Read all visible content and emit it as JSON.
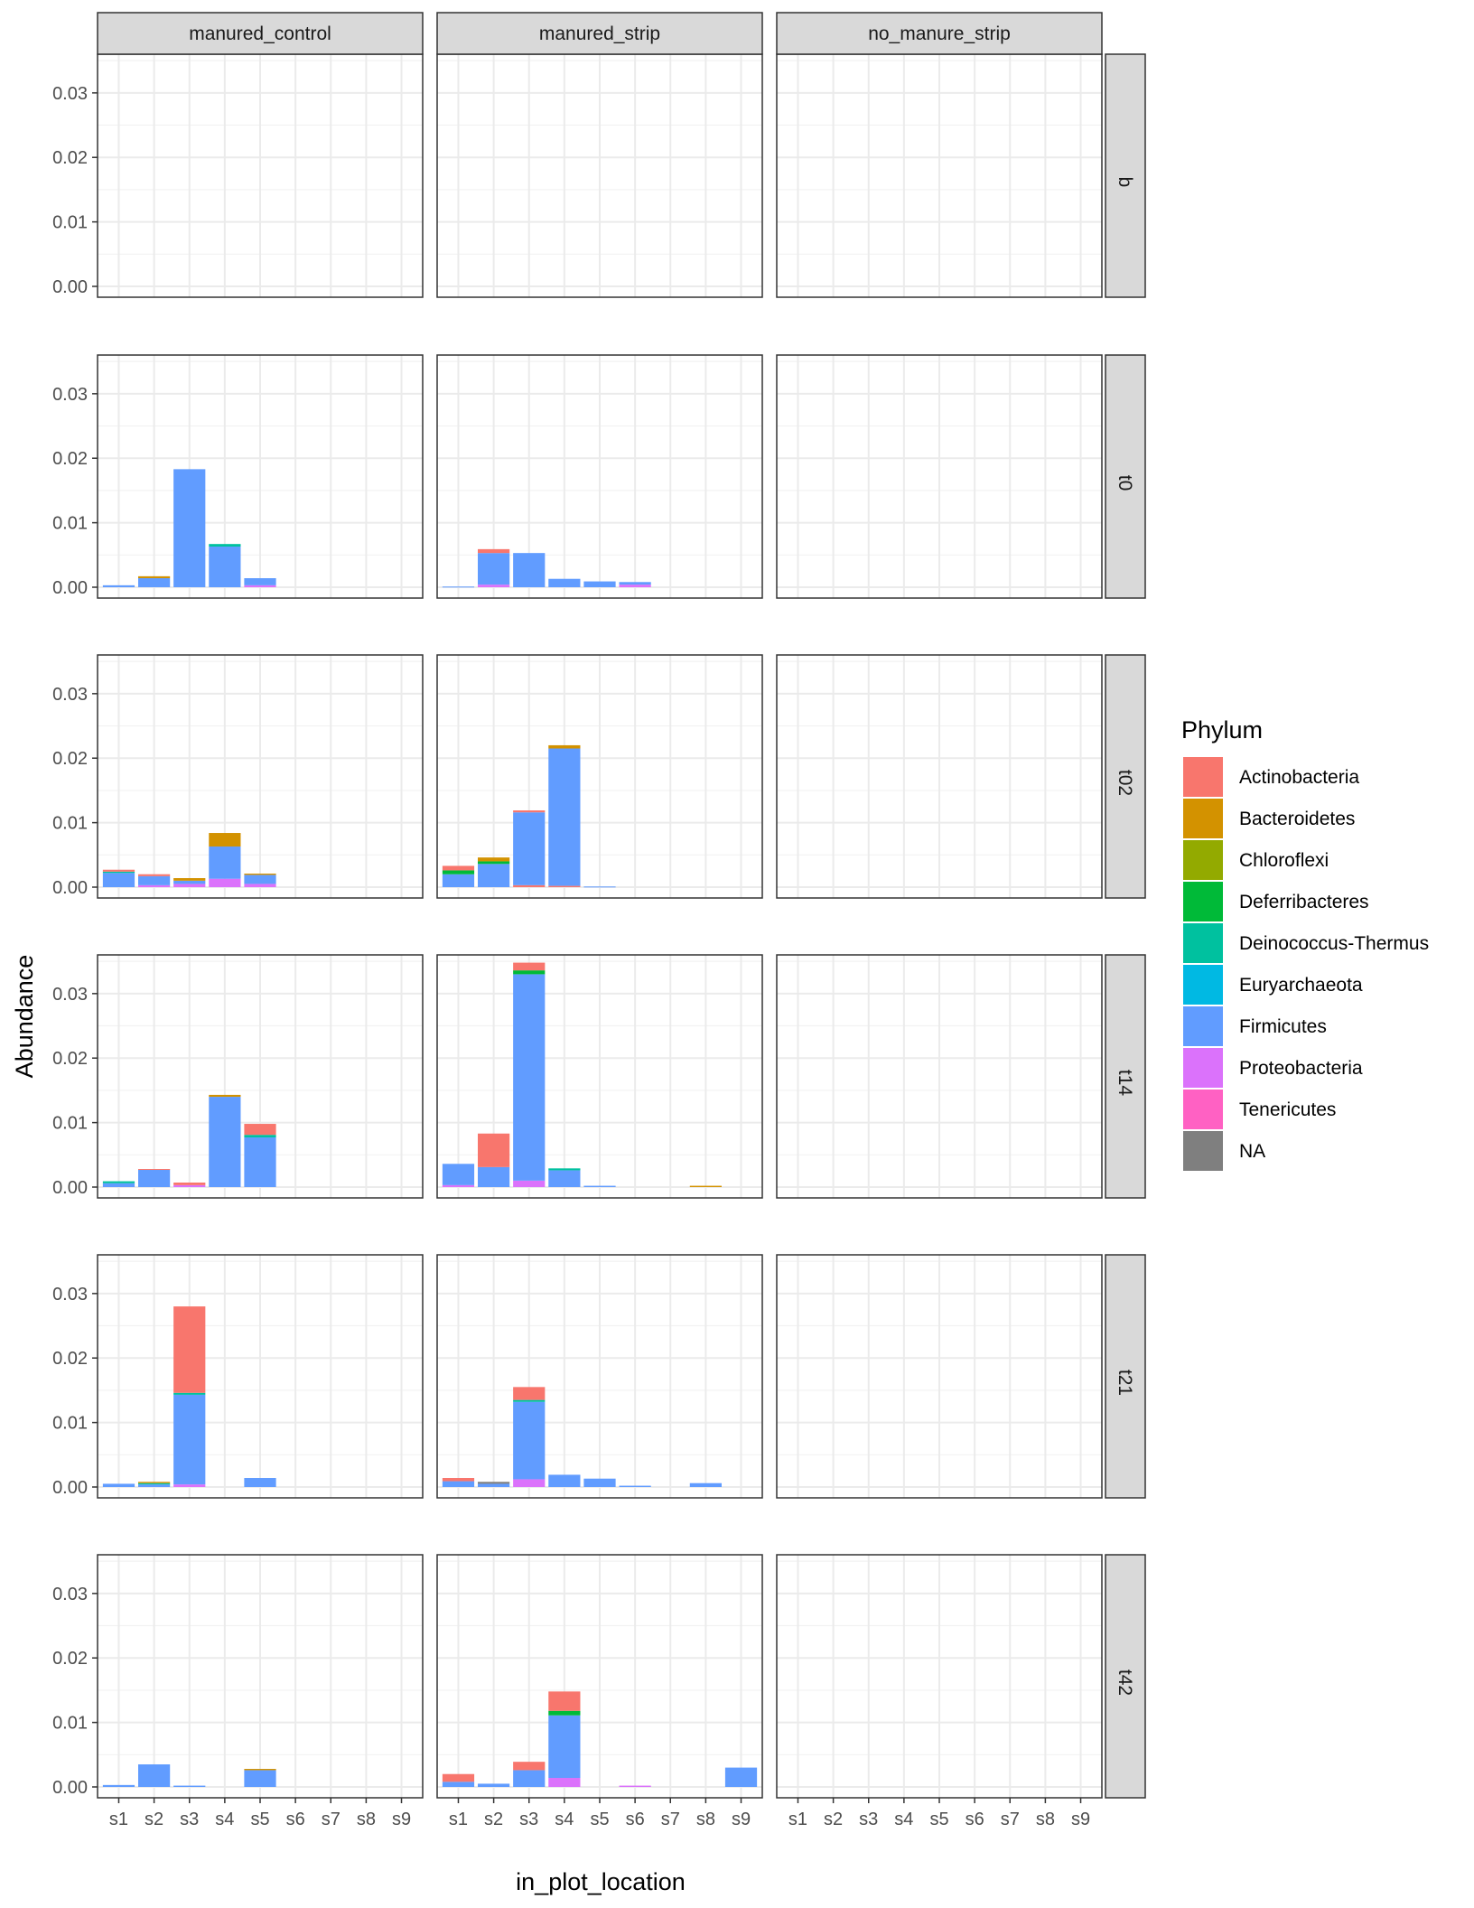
{
  "chart_data": {
    "type": "bar",
    "stacked": true,
    "facet_cols": [
      "manured_control",
      "manured_strip",
      "no_manure_strip"
    ],
    "facet_rows": [
      "b",
      "t0",
      "t02",
      "t14",
      "t21",
      "t42"
    ],
    "categories": [
      "s1",
      "s2",
      "s3",
      "s4",
      "s5",
      "s6",
      "s7",
      "s8",
      "s9"
    ],
    "xlabel": "in_plot_location",
    "ylabel": "Abundance",
    "ylim": [
      0,
      0.036
    ],
    "yticks": [
      0,
      0.01,
      0.02,
      0.03
    ],
    "ytick_labels": [
      "0.00",
      "0.01",
      "0.02",
      "0.03"
    ],
    "grid": true,
    "legend": {
      "title": "Phylum",
      "position": "right",
      "entries": [
        {
          "name": "Actinobacteria",
          "color": "#F8766D"
        },
        {
          "name": "Bacteroidetes",
          "color": "#D39200"
        },
        {
          "name": "Chloroflexi",
          "color": "#93AA00"
        },
        {
          "name": "Deferribacteres",
          "color": "#00BA38"
        },
        {
          "name": "Deinococcus-Thermus",
          "color": "#00C19F"
        },
        {
          "name": "Euryarchaeota",
          "color": "#00B9E3"
        },
        {
          "name": "Firmicutes",
          "color": "#619CFF"
        },
        {
          "name": "Proteobacteria",
          "color": "#DB72FB"
        },
        {
          "name": "Tenericutes",
          "color": "#FF61C3"
        },
        {
          "name": "NA",
          "color": "#7F7F7F"
        }
      ]
    },
    "panels": [
      {
        "col": "manured_control",
        "row": "t0",
        "bars": [
          {
            "x": "s1",
            "segments": [
              {
                "phylum": "Firmicutes",
                "value": 0.0003
              }
            ]
          },
          {
            "x": "s2",
            "segments": [
              {
                "phylum": "Firmicutes",
                "value": 0.0014
              },
              {
                "phylum": "Bacteroidetes",
                "value": 0.0003
              }
            ]
          },
          {
            "x": "s3",
            "segments": [
              {
                "phylum": "Firmicutes",
                "value": 0.0183
              }
            ]
          },
          {
            "x": "s4",
            "segments": [
              {
                "phylum": "Firmicutes",
                "value": 0.0063
              },
              {
                "phylum": "Deinococcus-Thermus",
                "value": 0.0004
              }
            ]
          },
          {
            "x": "s5",
            "segments": [
              {
                "phylum": "Proteobacteria",
                "value": 0.0003
              },
              {
                "phylum": "Firmicutes",
                "value": 0.0011
              }
            ]
          }
        ]
      },
      {
        "col": "manured_strip",
        "row": "t0",
        "bars": [
          {
            "x": "s1",
            "segments": [
              {
                "phylum": "Firmicutes",
                "value": 0.0001
              }
            ]
          },
          {
            "x": "s2",
            "segments": [
              {
                "phylum": "Proteobacteria",
                "value": 0.0004
              },
              {
                "phylum": "Firmicutes",
                "value": 0.0049
              },
              {
                "phylum": "Actinobacteria",
                "value": 0.0006
              }
            ]
          },
          {
            "x": "s3",
            "segments": [
              {
                "phylum": "Firmicutes",
                "value": 0.0053
              }
            ]
          },
          {
            "x": "s4",
            "segments": [
              {
                "phylum": "Firmicutes",
                "value": 0.0013
              }
            ]
          },
          {
            "x": "s5",
            "segments": [
              {
                "phylum": "Firmicutes",
                "value": 0.0009
              }
            ]
          },
          {
            "x": "s6",
            "segments": [
              {
                "phylum": "Proteobacteria",
                "value": 0.0004
              },
              {
                "phylum": "Firmicutes",
                "value": 0.0004
              }
            ]
          }
        ]
      },
      {
        "col": "manured_control",
        "row": "t02",
        "bars": [
          {
            "x": "s1",
            "segments": [
              {
                "phylum": "Firmicutes",
                "value": 0.0022
              },
              {
                "phylum": "Deinococcus-Thermus",
                "value": 0.0002
              },
              {
                "phylum": "Actinobacteria",
                "value": 0.0003
              }
            ]
          },
          {
            "x": "s2",
            "segments": [
              {
                "phylum": "Proteobacteria",
                "value": 0.0003
              },
              {
                "phylum": "Firmicutes",
                "value": 0.0014
              },
              {
                "phylum": "Actinobacteria",
                "value": 0.0003
              }
            ]
          },
          {
            "x": "s3",
            "segments": [
              {
                "phylum": "Proteobacteria",
                "value": 0.0005
              },
              {
                "phylum": "Firmicutes",
                "value": 0.0005
              },
              {
                "phylum": "Bacteroidetes",
                "value": 0.0004
              }
            ]
          },
          {
            "x": "s4",
            "segments": [
              {
                "phylum": "Proteobacteria",
                "value": 0.0013
              },
              {
                "phylum": "Firmicutes",
                "value": 0.005
              },
              {
                "phylum": "Bacteroidetes",
                "value": 0.0021
              }
            ]
          },
          {
            "x": "s5",
            "segments": [
              {
                "phylum": "Proteobacteria",
                "value": 0.0005
              },
              {
                "phylum": "Firmicutes",
                "value": 0.0014
              },
              {
                "phylum": "Bacteroidetes",
                "value": 0.0002
              }
            ]
          }
        ]
      },
      {
        "col": "manured_strip",
        "row": "t02",
        "bars": [
          {
            "x": "s1",
            "segments": [
              {
                "phylum": "Firmicutes",
                "value": 0.002
              },
              {
                "phylum": "Deferribacteres",
                "value": 0.0006
              },
              {
                "phylum": "Actinobacteria",
                "value": 0.0007
              }
            ]
          },
          {
            "x": "s2",
            "segments": [
              {
                "phylum": "Firmicutes",
                "value": 0.0036
              },
              {
                "phylum": "Deferribacteres",
                "value": 0.0004
              },
              {
                "phylum": "Bacteroidetes",
                "value": 0.0006
              }
            ]
          },
          {
            "x": "s3",
            "segments": [
              {
                "phylum": "Actinobacteria",
                "value": 0.0003
              },
              {
                "phylum": "Firmicutes",
                "value": 0.0113
              },
              {
                "phylum": "Actinobacteria",
                "value": 0.0003
              }
            ]
          },
          {
            "x": "s4",
            "segments": [
              {
                "phylum": "Actinobacteria",
                "value": 0.0002
              },
              {
                "phylum": "Firmicutes",
                "value": 0.0213
              },
              {
                "phylum": "Bacteroidetes",
                "value": 0.0005
              }
            ]
          },
          {
            "x": "s5",
            "segments": [
              {
                "phylum": "Firmicutes",
                "value": 0.0001
              }
            ]
          }
        ]
      },
      {
        "col": "manured_control",
        "row": "t14",
        "bars": [
          {
            "x": "s1",
            "segments": [
              {
                "phylum": "Firmicutes",
                "value": 0.0006
              },
              {
                "phylum": "Deinococcus-Thermus",
                "value": 0.0003
              }
            ]
          },
          {
            "x": "s2",
            "segments": [
              {
                "phylum": "Firmicutes",
                "value": 0.0027
              },
              {
                "phylum": "Actinobacteria",
                "value": 0.0001
              }
            ]
          },
          {
            "x": "s3",
            "segments": [
              {
                "phylum": "Proteobacteria",
                "value": 0.0003
              },
              {
                "phylum": "Actinobacteria",
                "value": 0.0004
              }
            ]
          },
          {
            "x": "s4",
            "segments": [
              {
                "phylum": "Firmicutes",
                "value": 0.014
              },
              {
                "phylum": "Bacteroidetes",
                "value": 0.0003
              }
            ]
          },
          {
            "x": "s5",
            "segments": [
              {
                "phylum": "Firmicutes",
                "value": 0.0077
              },
              {
                "phylum": "Deinococcus-Thermus",
                "value": 0.0004
              },
              {
                "phylum": "Actinobacteria",
                "value": 0.0017
              }
            ]
          }
        ]
      },
      {
        "col": "manured_strip",
        "row": "t14",
        "bars": [
          {
            "x": "s1",
            "segments": [
              {
                "phylum": "Proteobacteria",
                "value": 0.0003
              },
              {
                "phylum": "Firmicutes",
                "value": 0.0033
              }
            ]
          },
          {
            "x": "s2",
            "segments": [
              {
                "phylum": "Firmicutes",
                "value": 0.0031
              },
              {
                "phylum": "Actinobacteria",
                "value": 0.0052
              }
            ]
          },
          {
            "x": "s3",
            "segments": [
              {
                "phylum": "Proteobacteria",
                "value": 0.001
              },
              {
                "phylum": "Firmicutes",
                "value": 0.032
              },
              {
                "phylum": "Deferribacteres",
                "value": 0.0006
              },
              {
                "phylum": "Actinobacteria",
                "value": 0.0012
              }
            ]
          },
          {
            "x": "s4",
            "segments": [
              {
                "phylum": "Firmicutes",
                "value": 0.0026
              },
              {
                "phylum": "Deinococcus-Thermus",
                "value": 0.0003
              }
            ]
          },
          {
            "x": "s5",
            "segments": [
              {
                "phylum": "Firmicutes",
                "value": 0.0002
              }
            ]
          },
          {
            "x": "s8",
            "segments": [
              {
                "phylum": "Bacteroidetes",
                "value": 0.0002
              }
            ]
          }
        ]
      },
      {
        "col": "manured_control",
        "row": "t21",
        "bars": [
          {
            "x": "s1",
            "segments": [
              {
                "phylum": "Firmicutes",
                "value": 0.0005
              }
            ]
          },
          {
            "x": "s2",
            "segments": [
              {
                "phylum": "Firmicutes",
                "value": 0.0004
              },
              {
                "phylum": "Deinococcus-Thermus",
                "value": 0.0002
              },
              {
                "phylum": "Bacteroidetes",
                "value": 0.0002
              }
            ]
          },
          {
            "x": "s3",
            "segments": [
              {
                "phylum": "Proteobacteria",
                "value": 0.0004
              },
              {
                "phylum": "Firmicutes",
                "value": 0.0139
              },
              {
                "phylum": "Deinococcus-Thermus",
                "value": 0.0003
              },
              {
                "phylum": "Actinobacteria",
                "value": 0.0134
              }
            ]
          },
          {
            "x": "s5",
            "segments": [
              {
                "phylum": "Firmicutes",
                "value": 0.0014
              }
            ]
          }
        ]
      },
      {
        "col": "manured_strip",
        "row": "t21",
        "bars": [
          {
            "x": "s1",
            "segments": [
              {
                "phylum": "Firmicutes",
                "value": 0.0009
              },
              {
                "phylum": "Actinobacteria",
                "value": 0.0005
              }
            ]
          },
          {
            "x": "s2",
            "segments": [
              {
                "phylum": "Firmicutes",
                "value": 0.0005
              },
              {
                "phylum": "NA",
                "value": 0.0003
              }
            ]
          },
          {
            "x": "s3",
            "segments": [
              {
                "phylum": "Proteobacteria",
                "value": 0.0012
              },
              {
                "phylum": "Firmicutes",
                "value": 0.012
              },
              {
                "phylum": "Deinococcus-Thermus",
                "value": 0.0003
              },
              {
                "phylum": "Actinobacteria",
                "value": 0.002
              }
            ]
          },
          {
            "x": "s4",
            "segments": [
              {
                "phylum": "Firmicutes",
                "value": 0.0019
              }
            ]
          },
          {
            "x": "s5",
            "segments": [
              {
                "phylum": "Firmicutes",
                "value": 0.0013
              }
            ]
          },
          {
            "x": "s6",
            "segments": [
              {
                "phylum": "Firmicutes",
                "value": 0.0002
              }
            ]
          },
          {
            "x": "s8",
            "segments": [
              {
                "phylum": "Firmicutes",
                "value": 0.0006
              }
            ]
          }
        ]
      },
      {
        "col": "manured_control",
        "row": "t42",
        "bars": [
          {
            "x": "s1",
            "segments": [
              {
                "phylum": "Firmicutes",
                "value": 0.0003
              }
            ]
          },
          {
            "x": "s2",
            "segments": [
              {
                "phylum": "Firmicutes",
                "value": 0.0035
              }
            ]
          },
          {
            "x": "s3",
            "segments": [
              {
                "phylum": "Firmicutes",
                "value": 0.0002
              }
            ]
          },
          {
            "x": "s5",
            "segments": [
              {
                "phylum": "Firmicutes",
                "value": 0.0026
              },
              {
                "phylum": "Bacteroidetes",
                "value": 0.0002
              }
            ]
          }
        ]
      },
      {
        "col": "manured_strip",
        "row": "t42",
        "bars": [
          {
            "x": "s1",
            "segments": [
              {
                "phylum": "Firmicutes",
                "value": 0.0008
              },
              {
                "phylum": "Actinobacteria",
                "value": 0.0012
              }
            ]
          },
          {
            "x": "s2",
            "segments": [
              {
                "phylum": "Firmicutes",
                "value": 0.0005
              }
            ]
          },
          {
            "x": "s3",
            "segments": [
              {
                "phylum": "Firmicutes",
                "value": 0.0026
              },
              {
                "phylum": "Actinobacteria",
                "value": 0.0013
              }
            ]
          },
          {
            "x": "s4",
            "segments": [
              {
                "phylum": "Proteobacteria",
                "value": 0.0014
              },
              {
                "phylum": "Firmicutes",
                "value": 0.0097
              },
              {
                "phylum": "Deferribacteres",
                "value": 0.0007
              },
              {
                "phylum": "Actinobacteria",
                "value": 0.003
              }
            ]
          },
          {
            "x": "s6",
            "segments": [
              {
                "phylum": "Proteobacteria",
                "value": 0.0002
              }
            ]
          },
          {
            "x": "s9",
            "segments": [
              {
                "phylum": "Firmicutes",
                "value": 0.003
              }
            ]
          }
        ]
      }
    ]
  }
}
